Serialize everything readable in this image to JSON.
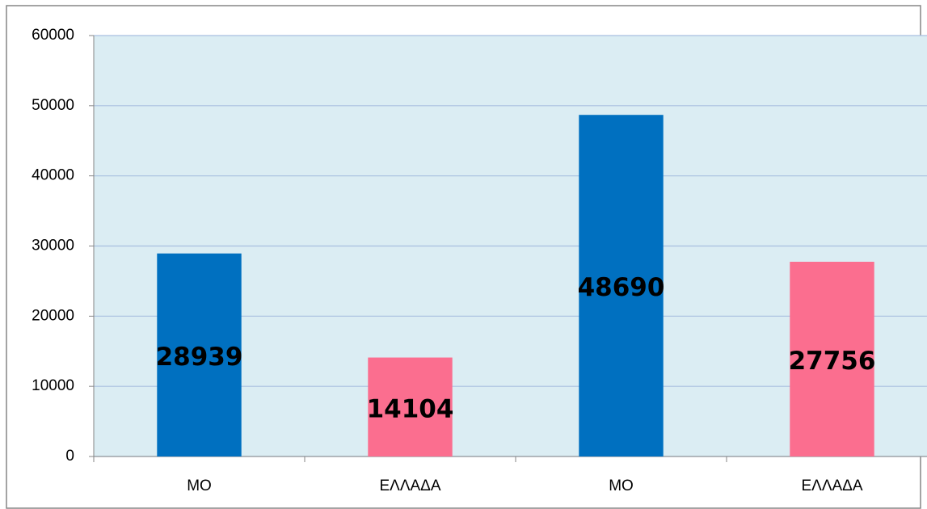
{
  "chart_data": {
    "type": "bar",
    "categories": [
      "MO",
      "ΕΛΛΑΔΑ",
      "MO",
      "ΕΛΛΑΔΑ"
    ],
    "values": [
      28939,
      14104,
      48690,
      27756
    ],
    "colors": [
      "#0070c0",
      "#fb6e8f",
      "#0070c0",
      "#fb6e8f"
    ],
    "ylim": [
      0,
      60000
    ],
    "yticks": [
      0,
      10000,
      20000,
      30000,
      40000,
      50000,
      60000
    ],
    "grid": true
  }
}
